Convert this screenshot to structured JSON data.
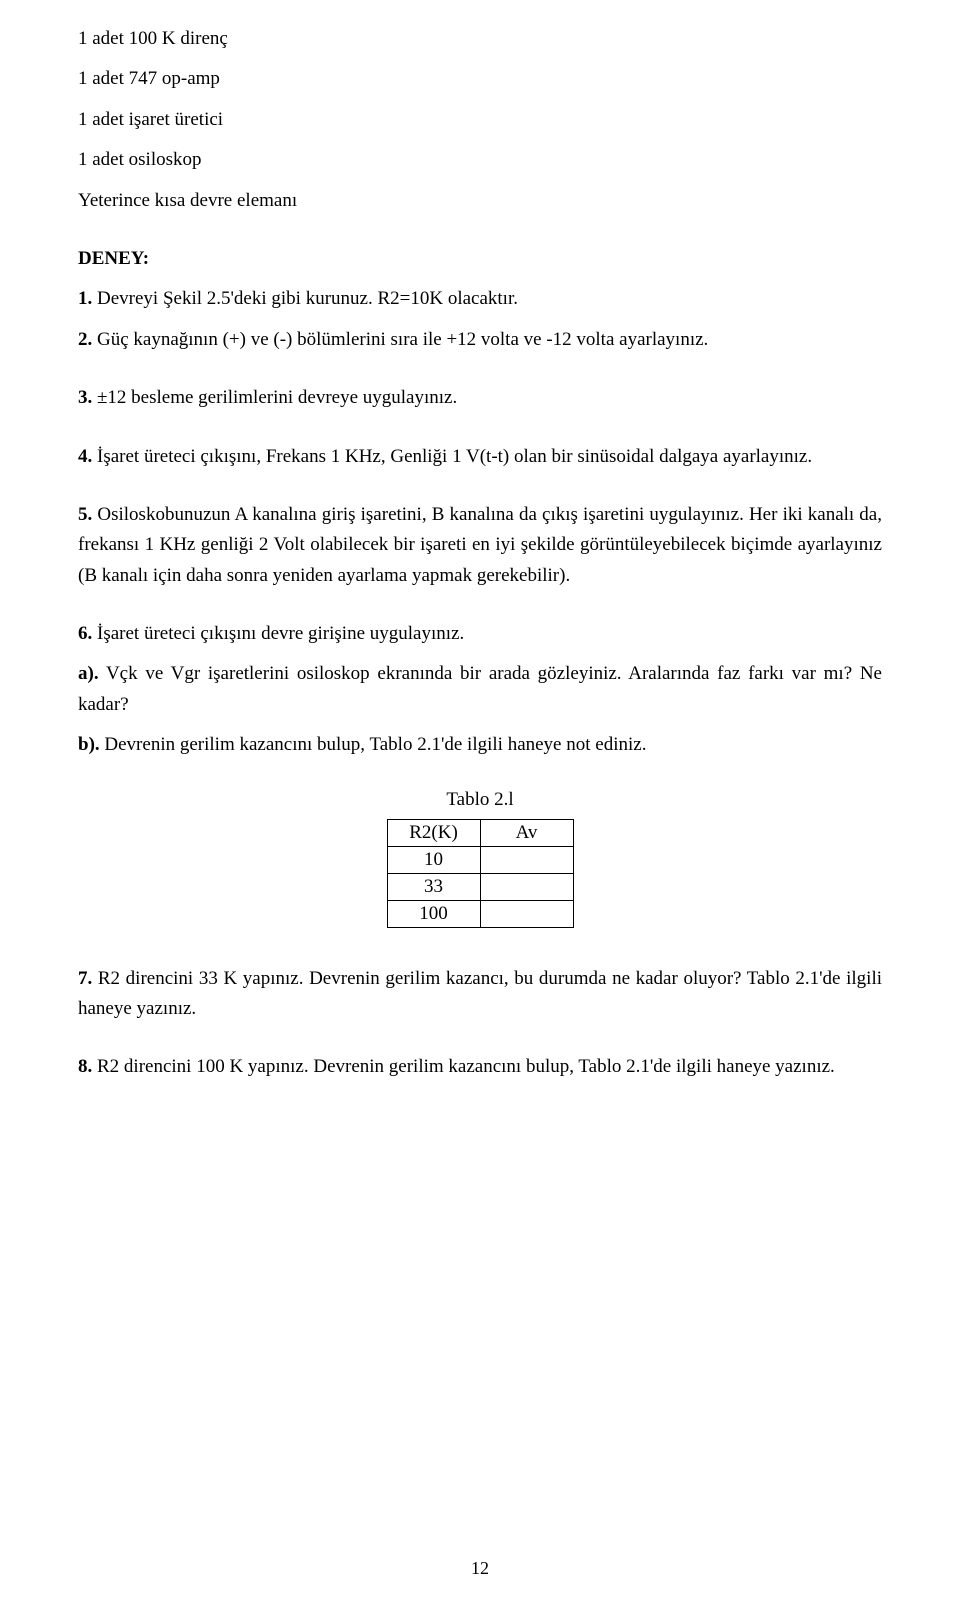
{
  "materials": {
    "m1": "1 adet 100 K direnç",
    "m2": "1 adet 747 op-amp",
    "m3": "1 adet işaret üretici",
    "m4": "1 adet osiloskop",
    "m5": "Yeterince kısa devre elemanı"
  },
  "deney_heading": "DENEY:",
  "steps": {
    "s1_num": "1.",
    "s1_text": " Devreyi Şekil 2.5'deki gibi kurunuz. R2=10K olacaktır.",
    "s2_num": "2.",
    "s2_text": " Güç kaynağının (+) ve (-) bölümlerini sıra ile +12 volta ve -12 volta ayarlayınız.",
    "s3_num": "3.",
    "s3_text": " ±12 besleme gerilimlerini devreye uygulayınız.",
    "s4_num": "4.",
    "s4_text": " İşaret  üreteci çıkışını, Frekans 1 KHz, Genliği  1 V(t-t) olan bir sinüsoidal dalgaya ayarlayınız.",
    "s5_num": "5.",
    "s5_text": " Osiloskobunuzun A kanalına giriş işaretini, B kanalına da çıkış işaretini uygulayınız. Her iki kanalı da, frekansı 1 KHz genliği 2 Volt olabilecek bir işareti en iyi şekilde görüntüleyebilecek biçimde ayarlayınız (B kanalı için daha sonra yeniden ayarlama yapmak gerekebilir).",
    "s6_num": "6.",
    "s6_text": " İşaret üreteci çıkışını devre girişine uygulayınız.",
    "s6a_label": "a).",
    "s6a_text": " Vçk ve Vgr işaretlerini osiloskop ekranında bir arada gözleyiniz. Aralarında faz farkı var mı? Ne kadar?",
    "s6b_label": "b).",
    "s6b_text": " Devrenin gerilim kazancını bulup, Tablo 2.1'de ilgili haneye not ediniz.",
    "s7_num": "7.",
    "s7_text": " R2 direncini 33 K yapınız. Devrenin gerilim kazancı, bu durumda ne kadar oluyor? Tablo 2.1'de ilgili haneye yazınız.",
    "s8_num": "8.",
    "s8_text": " R2 direncini 100 K yapınız. Devrenin gerilim kazancını bulup, Tablo 2.1'de ilgili haneye yazınız."
  },
  "table": {
    "caption": "Tablo 2.l",
    "h1": "R2(K)",
    "h2": "Av",
    "r1c1": "10",
    "r2c1": "33",
    "r3c1": "100",
    "r1c2": "",
    "r2c2": "",
    "r3c2": ""
  },
  "page_number": "12"
}
